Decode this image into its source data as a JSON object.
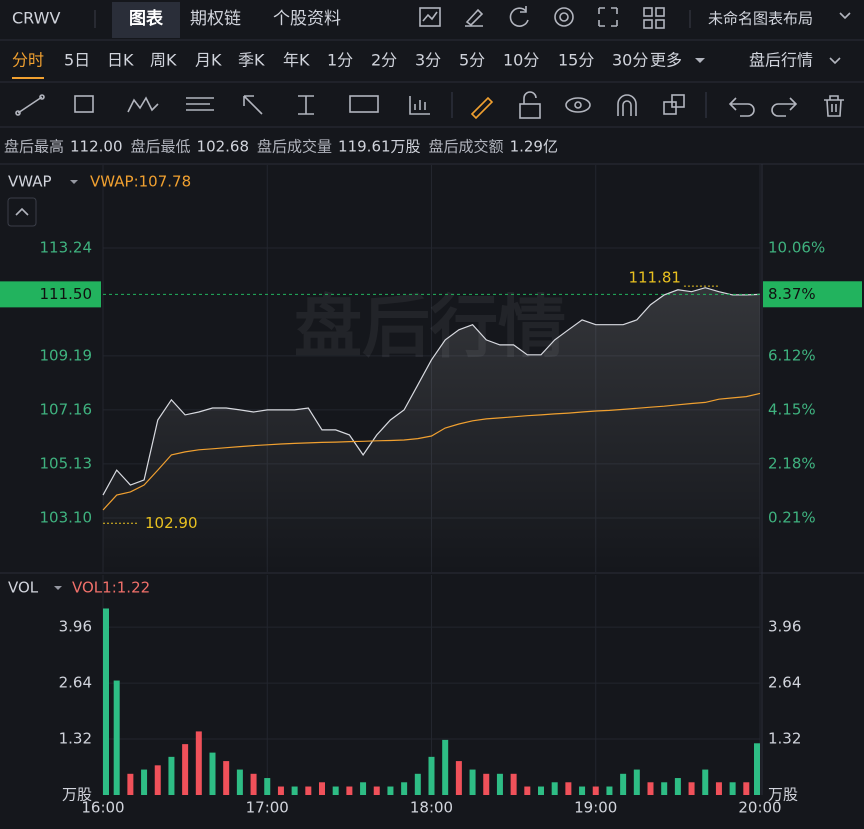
{
  "header": {
    "symbol": "CRWV",
    "tabs": [
      "图表",
      "期权链",
      "个股资料"
    ],
    "layout_name": "未命名图表布局"
  },
  "periods": {
    "items": [
      "分时",
      "5日",
      "日K",
      "周K",
      "月K",
      "季K",
      "年K",
      "1分",
      "2分",
      "3分",
      "5分",
      "10分",
      "15分",
      "30分"
    ],
    "more": "更多",
    "session": "盘后行情"
  },
  "info": [
    {
      "label": "盘后最高",
      "value": "112.00"
    },
    {
      "label": "盘后最低",
      "value": "102.68"
    },
    {
      "label": "盘后成交量",
      "value": "119.61万股"
    },
    {
      "label": "盘后成交额",
      "value": "1.29亿"
    }
  ],
  "chart_data": [
    {
      "type": "line",
      "indicator": "VWAP",
      "watermark": "盘后行情",
      "grid": true,
      "x": [
        "16:00",
        "16:05",
        "16:10",
        "16:15",
        "16:20",
        "16:25",
        "16:30",
        "16:35",
        "16:40",
        "16:45",
        "16:50",
        "16:55",
        "17:00",
        "17:05",
        "17:10",
        "17:15",
        "17:20",
        "17:25",
        "17:30",
        "17:35",
        "17:40",
        "17:45",
        "17:50",
        "17:55",
        "18:00",
        "18:05",
        "18:10",
        "18:15",
        "18:20",
        "18:25",
        "18:30",
        "18:35",
        "18:40",
        "18:45",
        "18:50",
        "18:55",
        "19:00",
        "19:05",
        "19:10",
        "19:15",
        "19:20",
        "19:25",
        "19:30",
        "19:35",
        "19:40",
        "19:45",
        "19:50",
        "19:55",
        "20:00"
      ],
      "xlim": [
        "16:00",
        "20:00"
      ],
      "xticks": [
        "16:00",
        "17:00",
        "18:00",
        "19:00",
        "20:00"
      ],
      "ylim": [
        101.07,
        116.36
      ],
      "yticks": [
        {
          "value": 103.1,
          "label": "103.10"
        },
        105.13,
        107.16,
        109.19,
        113.24
      ],
      "y2lim": [
        -1.77,
        13.09
      ],
      "y2ticks": [
        {
          "value": 0.21,
          "label": "0.21%"
        },
        {
          "value": 2.18,
          "label": "2.18%"
        },
        {
          "value": 4.15,
          "label": "4.15%"
        },
        {
          "value": 6.12,
          "label": "6.12%"
        },
        {
          "value": 10.06,
          "label": "10.06%"
        }
      ],
      "series": [
        {
          "color": "#d8dae0",
          "values": [
            103.96,
            104.9,
            104.34,
            104.53,
            106.78,
            107.54,
            106.97,
            107.08,
            107.23,
            107.23,
            107.16,
            107.08,
            107.16,
            107.16,
            107.16,
            107.23,
            106.41,
            106.41,
            106.22,
            105.47,
            106.22,
            106.78,
            107.16,
            108.1,
            109.04,
            109.79,
            110.17,
            110.36,
            109.79,
            109.6,
            109.6,
            109.23,
            109.23,
            109.79,
            110.17,
            110.54,
            110.36,
            110.36,
            110.36,
            110.54,
            111.11,
            111.48,
            111.67,
            111.6,
            111.75,
            111.6,
            111.48,
            111.48,
            111.5
          ]
        },
        {
          "name": "VWAP",
          "legend_label": "VWAP:107.78",
          "color": "#f0a030",
          "values": [
            103.4,
            103.96,
            104.08,
            104.34,
            104.9,
            105.47,
            105.58,
            105.66,
            105.7,
            105.74,
            105.78,
            105.82,
            105.85,
            105.88,
            105.9,
            105.92,
            105.94,
            105.95,
            105.97,
            105.98,
            106.0,
            106.01,
            106.03,
            106.08,
            106.18,
            106.48,
            106.63,
            106.75,
            106.82,
            106.86,
            106.9,
            106.94,
            106.97,
            107.01,
            107.04,
            107.08,
            107.12,
            107.14,
            107.18,
            107.22,
            107.26,
            107.3,
            107.35,
            107.4,
            107.44,
            107.56,
            107.61,
            107.66,
            107.78
          ]
        }
      ],
      "last_price": {
        "value": 111.5,
        "label": "111.50"
      },
      "last_change": {
        "value": 8.37,
        "label": "8.37%"
      },
      "last_color": "#22b35e",
      "annotations": [
        {
          "x": "19:45",
          "y": 111.81,
          "label": "111.81"
        },
        {
          "x": "16:00",
          "y": 102.9,
          "label": "102.90"
        }
      ]
    },
    {
      "type": "bar",
      "indicator": "VOL",
      "legend_label": "VOL1:1.22",
      "unit": "万股",
      "grid": true,
      "x": [
        "16:00",
        "16:05",
        "16:10",
        "16:15",
        "16:20",
        "16:25",
        "16:30",
        "16:35",
        "16:40",
        "16:45",
        "16:50",
        "16:55",
        "17:00",
        "17:05",
        "17:10",
        "17:15",
        "17:20",
        "17:25",
        "17:30",
        "17:35",
        "17:40",
        "17:45",
        "17:50",
        "17:55",
        "18:00",
        "18:05",
        "18:10",
        "18:15",
        "18:20",
        "18:25",
        "18:30",
        "18:35",
        "18:40",
        "18:45",
        "18:50",
        "18:55",
        "19:00",
        "19:05",
        "19:10",
        "19:15",
        "19:20",
        "19:25",
        "19:30",
        "19:35",
        "19:40",
        "19:45",
        "19:50",
        "19:55",
        "20:00"
      ],
      "values": [
        4.4,
        2.7,
        0.5,
        0.6,
        0.7,
        0.9,
        1.2,
        1.5,
        1.0,
        0.8,
        0.6,
        0.5,
        0.4,
        0.2,
        0.2,
        0.2,
        0.3,
        0.2,
        0.2,
        0.3,
        0.2,
        0.2,
        0.3,
        0.5,
        0.9,
        1.3,
        0.8,
        0.6,
        0.5,
        0.5,
        0.5,
        0.2,
        0.2,
        0.3,
        0.3,
        0.2,
        0.2,
        0.2,
        0.5,
        0.6,
        0.3,
        0.3,
        0.4,
        0.3,
        0.6,
        0.3,
        0.3,
        0.3,
        1.22
      ],
      "colors": [
        "#2ebd85",
        "#2ebd85",
        "#f0515a",
        "#2ebd85",
        "#f0515a",
        "#2ebd85",
        "#f0515a",
        "#f0515a",
        "#2ebd85",
        "#f0515a",
        "#2ebd85",
        "#f0515a",
        "#2ebd85",
        "#f0515a",
        "#2ebd85",
        "#f0515a",
        "#f0515a",
        "#2ebd85",
        "#f0515a",
        "#2ebd85",
        "#f0515a",
        "#2ebd85",
        "#2ebd85",
        "#2ebd85",
        "#2ebd85",
        "#2ebd85",
        "#f0515a",
        "#2ebd85",
        "#f0515a",
        "#2ebd85",
        "#f0515a",
        "#f0515a",
        "#2ebd85",
        "#2ebd85",
        "#f0515a",
        "#2ebd85",
        "#f0515a",
        "#2ebd85",
        "#2ebd85",
        "#2ebd85",
        "#f0515a",
        "#2ebd85",
        "#2ebd85",
        "#f0515a",
        "#2ebd85",
        "#f0515a",
        "#2ebd85",
        "#f0515a",
        "#2ebd85"
      ],
      "xlim": [
        "16:00",
        "20:00"
      ],
      "xticks": [
        "16:00",
        "17:00",
        "18:00",
        "19:00",
        "20:00"
      ],
      "ylim": [
        0,
        5.19
      ],
      "yticks": [
        1.32,
        2.64,
        3.96
      ]
    }
  ]
}
